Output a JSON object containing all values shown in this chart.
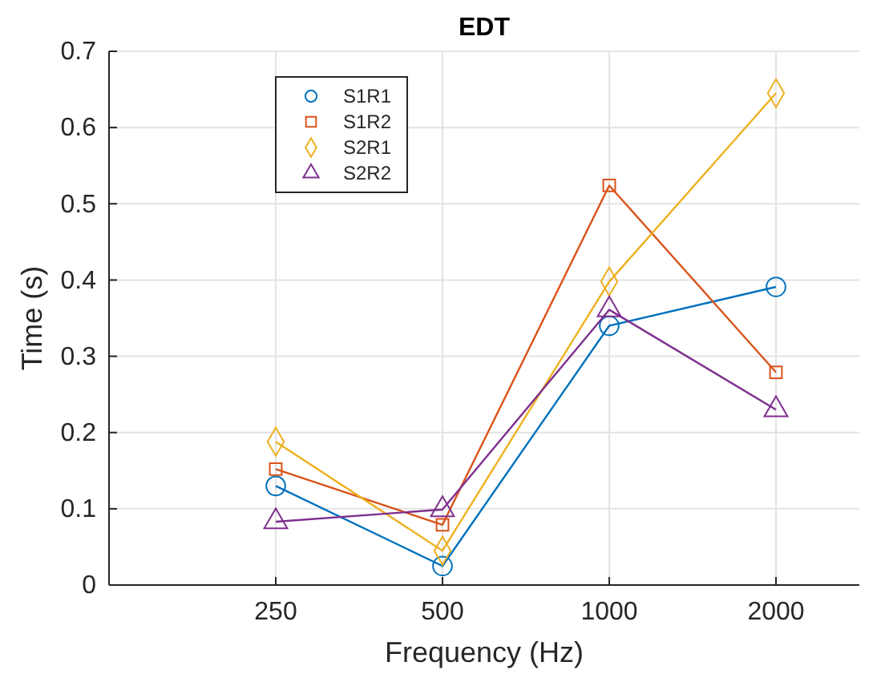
{
  "chart_data": {
    "type": "line",
    "title": "EDT",
    "xlabel": "Frequency (Hz)",
    "ylabel": "Time (s)",
    "categories": [
      "250",
      "500",
      "1000",
      "2000"
    ],
    "ylim": [
      0,
      0.7
    ],
    "yticks": [
      0,
      0.1,
      0.2,
      0.3,
      0.4,
      0.5,
      0.6,
      0.7
    ],
    "grid": true,
    "legend": "top left",
    "line_style": "solid",
    "series": [
      {
        "name": "S1R1",
        "color": "#0072bd",
        "marker": "circle",
        "values": [
          0.13,
          0.025,
          0.34,
          0.391
        ]
      },
      {
        "name": "S1R2",
        "color": "#d95319",
        "marker": "square",
        "values": [
          0.152,
          0.079,
          0.524,
          0.279
        ]
      },
      {
        "name": "S2R1",
        "color": "#edb120",
        "marker": "diamond",
        "values": [
          0.188,
          0.045,
          0.398,
          0.645
        ]
      },
      {
        "name": "S2R2",
        "color": "#7e2f8e",
        "marker": "triangle",
        "values": [
          0.083,
          0.099,
          0.361,
          0.23
        ]
      }
    ]
  }
}
